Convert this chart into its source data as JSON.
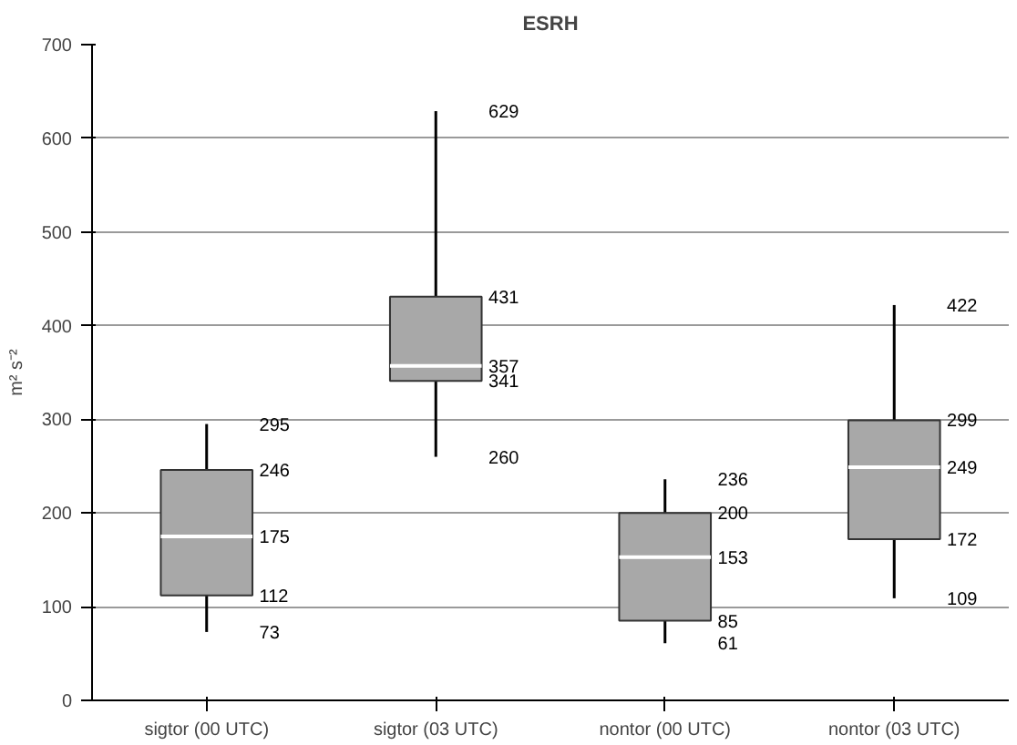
{
  "chart_data": {
    "type": "box",
    "title": "ESRH",
    "ylabel": "m² s⁻²",
    "categories": [
      "sigtor (00 UTC)",
      "sigtor (03 UTC)",
      "nontor (00 UTC)",
      "nontor (03 UTC)"
    ],
    "series": [
      {
        "color": "#a8a8a8",
        "boxes": [
          {
            "low": 73,
            "q1": 112,
            "median": 175,
            "q3": 246,
            "high": 295
          },
          {
            "low": 260,
            "q1": 341,
            "median": 357,
            "q3": 431,
            "high": 629
          },
          {
            "low": 61,
            "q1": 85,
            "median": 153,
            "q3": 200,
            "high": 236
          },
          {
            "low": 109,
            "q1": 172,
            "median": 249,
            "q3": 299,
            "high": 422
          }
        ]
      }
    ],
    "annotations": [
      {
        "text": "73",
        "x": "sigtor (00 UTC)",
        "y": 73
      },
      {
        "text": "112",
        "x": "sigtor (00 UTC)",
        "y": 112
      },
      {
        "text": "175",
        "x": "sigtor (00 UTC)",
        "y": 175
      },
      {
        "text": "246",
        "x": "sigtor (00 UTC)",
        "y": 246
      },
      {
        "text": "295",
        "x": "sigtor (00 UTC)",
        "y": 295
      },
      {
        "text": "260",
        "x": "sigtor (03 UTC)",
        "y": 260
      },
      {
        "text": "341",
        "x": "sigtor (03 UTC)",
        "y": 341
      },
      {
        "text": "357",
        "x": "sigtor (03 UTC)",
        "y": 357
      },
      {
        "text": "431",
        "x": "sigtor (03 UTC)",
        "y": 431
      },
      {
        "text": "629",
        "x": "sigtor (03 UTC)",
        "y": 629
      },
      {
        "text": "61",
        "x": "nontor (00 UTC)",
        "y": 61
      },
      {
        "text": "85",
        "x": "nontor (00 UTC)",
        "y": 85
      },
      {
        "text": "153",
        "x": "nontor (00 UTC)",
        "y": 153
      },
      {
        "text": "200",
        "x": "nontor (00 UTC)",
        "y": 200
      },
      {
        "text": "236",
        "x": "nontor (00 UTC)",
        "y": 236
      },
      {
        "text": "109",
        "x": "nontor (03 UTC)",
        "y": 109
      },
      {
        "text": "172",
        "x": "nontor (03 UTC)",
        "y": 172
      },
      {
        "text": "249",
        "x": "nontor (03 UTC)",
        "y": 249
      },
      {
        "text": "299",
        "x": "nontor (03 UTC)",
        "y": 299
      },
      {
        "text": "422",
        "x": "nontor (03 UTC)",
        "y": 422
      }
    ],
    "ylim": [
      0,
      700
    ],
    "yticks": [
      0,
      100,
      200,
      300,
      400,
      500,
      600,
      700
    ],
    "grid": "y"
  }
}
